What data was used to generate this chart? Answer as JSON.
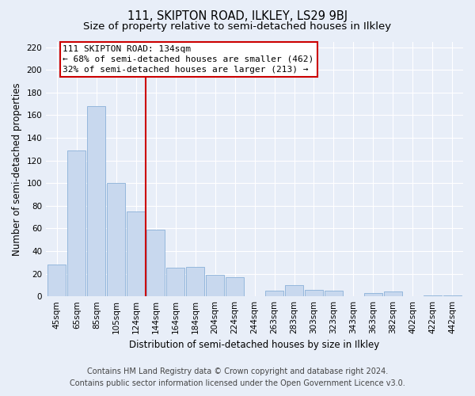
{
  "title": "111, SKIPTON ROAD, ILKLEY, LS29 9BJ",
  "subtitle": "Size of property relative to semi-detached houses in Ilkley",
  "xlabel": "Distribution of semi-detached houses by size in Ilkley",
  "ylabel": "Number of semi-detached properties",
  "bar_labels": [
    "45sqm",
    "65sqm",
    "85sqm",
    "105sqm",
    "124sqm",
    "144sqm",
    "164sqm",
    "184sqm",
    "204sqm",
    "224sqm",
    "244sqm",
    "263sqm",
    "283sqm",
    "303sqm",
    "323sqm",
    "343sqm",
    "363sqm",
    "382sqm",
    "402sqm",
    "422sqm",
    "442sqm"
  ],
  "bar_values": [
    28,
    129,
    168,
    100,
    75,
    59,
    25,
    26,
    19,
    17,
    0,
    5,
    10,
    6,
    5,
    0,
    3,
    4,
    0,
    1,
    1
  ],
  "bar_color": "#c8d8ee",
  "bar_edge_color": "#8ab0d8",
  "vline_color": "#cc0000",
  "vline_x": 4.5,
  "annotation_title": "111 SKIPTON ROAD: 134sqm",
  "annotation_line1": "← 68% of semi-detached houses are smaller (462)",
  "annotation_line2": "32% of semi-detached houses are larger (213) →",
  "annotation_box_facecolor": "#ffffff",
  "annotation_box_edgecolor": "#cc0000",
  "ylim": [
    0,
    225
  ],
  "yticks": [
    0,
    20,
    40,
    60,
    80,
    100,
    120,
    140,
    160,
    180,
    200,
    220
  ],
  "footer_line1": "Contains HM Land Registry data © Crown copyright and database right 2024.",
  "footer_line2": "Contains public sector information licensed under the Open Government Licence v3.0.",
  "bg_color": "#e8eef8",
  "plot_bg_color": "#e8eef8",
  "grid_color": "#ffffff",
  "title_fontsize": 10.5,
  "subtitle_fontsize": 9.5,
  "axis_label_fontsize": 8.5,
  "tick_fontsize": 7.5,
  "annotation_fontsize": 8,
  "footer_fontsize": 7
}
